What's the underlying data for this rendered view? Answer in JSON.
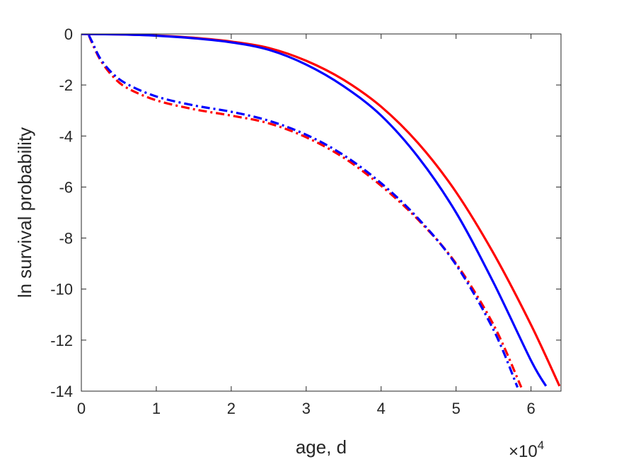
{
  "chart_data": {
    "type": "line",
    "xlabel": "age, d",
    "ylabel": "ln survival probability",
    "x_exponent_label": {
      "base": "×10",
      "power": "4"
    },
    "xlim": [
      0,
      64000
    ],
    "ylim": [
      -14,
      0
    ],
    "xticks": [
      0,
      10000,
      20000,
      30000,
      40000,
      50000,
      60000
    ],
    "xtick_labels": [
      "0",
      "1",
      "2",
      "3",
      "4",
      "5",
      "6"
    ],
    "yticks": [
      0,
      -2,
      -4,
      -6,
      -8,
      -10,
      -12,
      -14
    ],
    "ytick_labels": [
      "0",
      "-2",
      "-4",
      "-6",
      "-8",
      "-10",
      "-12",
      "-14"
    ],
    "grid": false,
    "series": [
      {
        "color": "#ff0000",
        "style": "solid",
        "points": [
          [
            0,
            0
          ],
          [
            5000,
            -0.02
          ],
          [
            10000,
            -0.06
          ],
          [
            15000,
            -0.15
          ],
          [
            20000,
            -0.3
          ],
          [
            25000,
            -0.55
          ],
          [
            30000,
            -1.05
          ],
          [
            35000,
            -1.8
          ],
          [
            40000,
            -2.85
          ],
          [
            45000,
            -4.3
          ],
          [
            50000,
            -6.2
          ],
          [
            55000,
            -8.6
          ],
          [
            60000,
            -11.4
          ],
          [
            63800,
            -13.8
          ]
        ]
      },
      {
        "color": "#0000ff",
        "style": "solid",
        "points": [
          [
            0,
            0
          ],
          [
            5000,
            -0.02
          ],
          [
            10000,
            -0.07
          ],
          [
            15000,
            -0.17
          ],
          [
            20000,
            -0.33
          ],
          [
            25000,
            -0.62
          ],
          [
            30000,
            -1.2
          ],
          [
            35000,
            -2.05
          ],
          [
            40000,
            -3.2
          ],
          [
            45000,
            -4.85
          ],
          [
            50000,
            -7.0
          ],
          [
            55000,
            -9.75
          ],
          [
            60000,
            -12.8
          ],
          [
            62000,
            -13.8
          ]
        ]
      },
      {
        "color": "#ff0000",
        "style": "dashdot",
        "points": [
          [
            1000,
            -0.05
          ],
          [
            1500,
            -0.4
          ],
          [
            2500,
            -1.0
          ],
          [
            4000,
            -1.6
          ],
          [
            6000,
            -2.1
          ],
          [
            10000,
            -2.6
          ],
          [
            15000,
            -2.95
          ],
          [
            20000,
            -3.2
          ],
          [
            25000,
            -3.5
          ],
          [
            30000,
            -4.05
          ],
          [
            35000,
            -4.85
          ],
          [
            40000,
            -5.95
          ],
          [
            45000,
            -7.3
          ],
          [
            50000,
            -9.0
          ],
          [
            55000,
            -11.4
          ],
          [
            58700,
            -13.85
          ]
        ]
      },
      {
        "color": "#0000ff",
        "style": "dashdot",
        "points": [
          [
            1000,
            -0.05
          ],
          [
            1500,
            -0.35
          ],
          [
            2500,
            -0.95
          ],
          [
            4000,
            -1.5
          ],
          [
            6000,
            -1.95
          ],
          [
            10000,
            -2.45
          ],
          [
            15000,
            -2.8
          ],
          [
            20000,
            -3.05
          ],
          [
            25000,
            -3.4
          ],
          [
            30000,
            -3.95
          ],
          [
            35000,
            -4.75
          ],
          [
            40000,
            -5.85
          ],
          [
            45000,
            -7.25
          ],
          [
            50000,
            -9.05
          ],
          [
            55000,
            -11.6
          ],
          [
            58200,
            -13.85
          ]
        ]
      }
    ]
  }
}
